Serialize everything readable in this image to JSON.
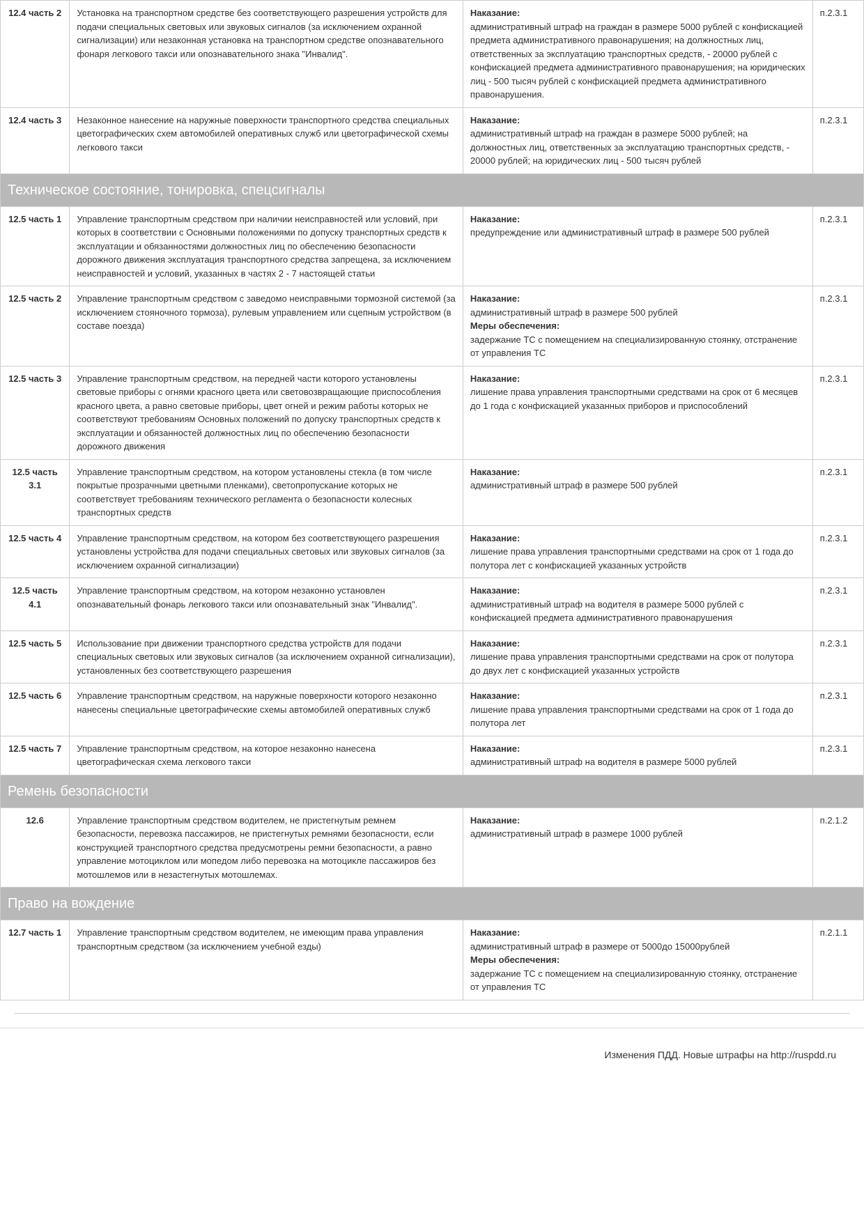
{
  "labels": {
    "penalty": "Наказание:",
    "measures": "Меры обеспечения:"
  },
  "rows": [
    {
      "code": "12.4 часть 2",
      "desc": "Установка на транспортном средстве без соответствующего разрешения устройств для подачи специальных световых или звуковых сигналов (за исключением охранной сигнализации) или незаконная установка на транспортном средстве опознавательного фонаря легкового такси или опознавательного знака \"Инвалид\".",
      "penalty": "административный штраф на граждан в размере 5000 рублей с конфискацией предмета административного правонарушения; на должностных лиц, ответственных за эксплуатацию транспортных средств, - 20000 рублей с конфискацией предмета административного правонарушения; на юридических лиц - 500 тысяч рублей с конфискацией предмета административного правонарушения.",
      "ref": "п.2.3.1"
    },
    {
      "code": "12.4 часть 3",
      "desc": "Незаконное нанесение на наружные поверхности транспортного средства специальных цветографических схем автомобилей оперативных служб или цветографической схемы легкового такси",
      "penalty": "административный штраф на граждан в размере 5000 рублей; на должностных лиц, ответственных за эксплуатацию транспортных средств, - 20000 рублей; на юридических лиц - 500 тысяч рублей",
      "ref": "п.2.3.1"
    }
  ],
  "section1": {
    "title": "Техническое состояние, тонировка, спецсигналы"
  },
  "rows1": [
    {
      "code": "12.5 часть 1",
      "desc": "Управление транспортным средством при наличии неисправностей или условий, при которых в соответствии с Основными положениями по допуску транспортных средств к эксплуатации и обязанностями должностных лиц по обеспечению безопасности дорожного движения эксплуатация транспортного средства запрещена, за исключением неисправностей и условий, указанных в частях 2 - 7 настоящей статьи",
      "penalty": "предупреждение или административный штраф в размере 500 рублей",
      "ref": "п.2.3.1"
    },
    {
      "code": "12.5 часть 2",
      "desc": "Управление транспортным средством с заведомо неисправными тормозной системой (за исключением стояночного тормоза), рулевым управлением или сцепным устройством (в составе поезда)",
      "penalty": "административный штраф в размере 500 рублей",
      "measures": "задержание ТС с помещением на специализированную стоянку, отстранение от управления ТС",
      "ref": "п.2.3.1"
    },
    {
      "code": "12.5 часть 3",
      "desc": "Управление транспортным средством, на передней части которого установлены световые приборы с огнями красного цвета или световозвращающие приспособления красного цвета, а равно световые приборы, цвет огней и режим работы которых не соответствуют требованиям Основных положений по допуску транспортных средств к эксплуатации и обязанностей должностных лиц по обеспечению безопасности дорожного движения",
      "penalty": "лишение права управления транспортными средствами на срок от 6 месяцев до 1 года с конфискацией указанных приборов и приспособлений",
      "ref": "п.2.3.1"
    },
    {
      "code": "12.5 часть 3.1",
      "desc": "Управление транспортным средством, на котором установлены стекла (в том числе покрытые прозрачными цветными пленками), светопропускание которых не соответствует требованиям технического регламента о безопасности колесных транспортных средств",
      "penalty": "административный штраф в размере 500 рублей",
      "ref": "п.2.3.1"
    },
    {
      "code": "12.5 часть 4",
      "desc": "Управление транспортным средством, на котором без соответствующего разрешения установлены устройства для подачи специальных световых или звуковых сигналов (за исключением охранной сигнализации)",
      "penalty": "лишение права управления транспортными средствами на срок от 1 года до полутора лет с конфискацией указанных устройств",
      "ref": "п.2.3.1"
    },
    {
      "code": "12.5 часть 4.1",
      "desc": "Управление транспортным средством, на котором незаконно установлен опознавательный фонарь легкового такси или опознавательный знак \"Инвалид\".",
      "penalty": "административный штраф на водителя в размере 5000 рублей с конфискацией предмета административного правонарушения",
      "ref": "п.2.3.1"
    },
    {
      "code": "12.5 часть 5",
      "desc": "Использование при движении транспортного средства устройств для подачи специальных световых или звуковых сигналов (за исключением охранной сигнализации), установленных без соответствующего разрешения",
      "penalty": "лишение права управления транспортными средствами на срок от полутора до двух лет с конфискацией указанных устройств",
      "ref": "п.2.3.1"
    },
    {
      "code": "12.5 часть 6",
      "desc": "Управление транспортным средством, на наружные поверхности которого незаконно нанесены специальные цветографические схемы автомобилей оперативных служб",
      "penalty": "лишение права управления транспортными средствами на срок от 1 года до полутора лет",
      "ref": "п.2.3.1"
    },
    {
      "code": "12.5 часть 7",
      "desc": "Управление транспортным средством, на которое незаконно нанесена цветографическая схема легкового такси",
      "penalty": "административный штраф на водителя в размере 5000 рублей",
      "ref": "п.2.3.1"
    }
  ],
  "section2": {
    "title": "Ремень безопасности"
  },
  "rows2": [
    {
      "code": "12.6",
      "desc": "Управление транспортным средством водителем, не пристегнутым ремнем безопасности, перевозка пассажиров, не пристегнутых ремнями безопасности, если конструкцией транспортного средства предусмотрены ремни безопасности, а равно управление мотоциклом или мопедом либо перевозка на мотоцикле пассажиров без мотошлемов или в незастегнутых мотошлемах.",
      "penalty": "административный штраф в размере 1000  рублей",
      "ref": "п.2.1.2"
    }
  ],
  "section3": {
    "title": "Право на вождение"
  },
  "rows3": [
    {
      "code": "12.7 часть 1",
      "desc": "Управление транспортным средством водителем, не имеющим права управления транспортным средством (за исключением учебной езды)",
      "penalty": "административный штраф в размере от 5000до 15000рублей",
      "measures": "задержание ТС с помещением на специализированную стоянку, отстранение от управления ТС",
      "ref": "п.2.1.1"
    }
  ],
  "footer": "Изменения ПДД. Новые штрафы на http://ruspdd.ru"
}
